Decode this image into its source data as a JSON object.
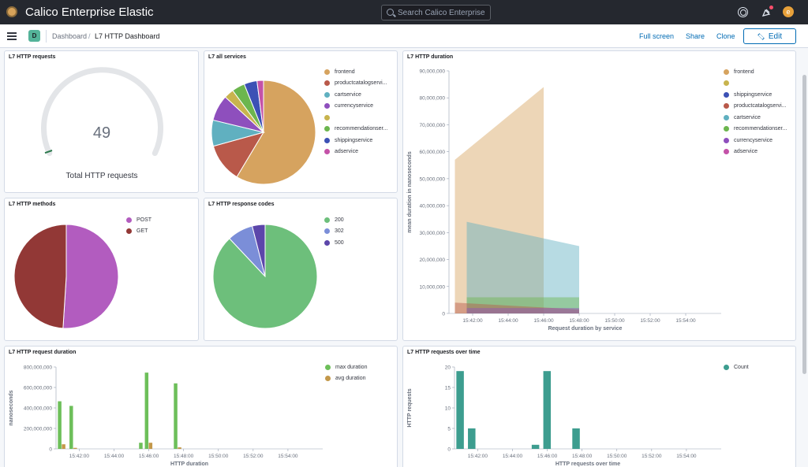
{
  "header": {
    "title": "Calico Enterprise Elastic",
    "search_placeholder": "Search Calico Enterprise",
    "avatar_letter": "e"
  },
  "breadcrumb": {
    "badge": "D",
    "root": "Dashboard",
    "sep": "/",
    "current": "L7 HTTP Dashboard"
  },
  "actions": {
    "fullscreen": "Full screen",
    "share": "Share",
    "clone": "Clone",
    "edit": "Edit"
  },
  "panels": {
    "requests": {
      "title": "L7 HTTP requests",
      "value": "49",
      "label": "Total HTTP requests"
    },
    "services": {
      "title": "L7 all services",
      "legend": [
        {
          "label": "frontend",
          "color": "#d6a35f"
        },
        {
          "label": "productcatalogservi...",
          "color": "#b9594a"
        },
        {
          "label": "cartservice",
          "color": "#60b0c0"
        },
        {
          "label": "currencyservice",
          "color": "#8e4fbd"
        },
        {
          "label": "",
          "color": "#c8b44e"
        },
        {
          "label": "recommendationser...",
          "color": "#6cb64e"
        },
        {
          "label": "shippingservice",
          "color": "#3c51b5"
        },
        {
          "label": "adservice",
          "color": "#c452a8"
        }
      ]
    },
    "duration": {
      "title": "L7 HTTP duration",
      "legend": [
        {
          "label": "frontend",
          "color": "#d6a35f"
        },
        {
          "label": "",
          "color": "#c8b44e"
        },
        {
          "label": "shippingservice",
          "color": "#3c51b5"
        },
        {
          "label": "productcatalogservi...",
          "color": "#b9594a"
        },
        {
          "label": "cartservice",
          "color": "#60b0c0"
        },
        {
          "label": "recommendationser...",
          "color": "#6cb64e"
        },
        {
          "label": "currencyservice",
          "color": "#8e4fbd"
        },
        {
          "label": "adservice",
          "color": "#c452a8"
        }
      ]
    },
    "methods": {
      "title": "L7 HTTP methods",
      "legend": [
        {
          "label": "POST",
          "color": "#b25cbf"
        },
        {
          "label": "GET",
          "color": "#923836"
        }
      ]
    },
    "codes": {
      "title": "L7 HTTP response codes",
      "legend": [
        {
          "label": "200",
          "color": "#6dbf7b"
        },
        {
          "label": "302",
          "color": "#7b8ed8"
        },
        {
          "label": "500",
          "color": "#5c46aa"
        }
      ]
    },
    "req_duration": {
      "title": "L7 HTTP request duration",
      "legend": [
        {
          "label": "max duration",
          "color": "#6dbf5a"
        },
        {
          "label": "avg duration",
          "color": "#c3984a"
        }
      ]
    },
    "over_time": {
      "title": "L7 HTTP requests over time",
      "legend": [
        {
          "label": "Count",
          "color": "#3d9d8f"
        }
      ]
    }
  },
  "chart_data": [
    {
      "type": "pie",
      "title": "L7 all services",
      "categories": [
        "frontend",
        "productcatalogservice",
        "cartservice",
        "currencyservice",
        "",
        "recommendationservice",
        "shippingservice",
        "adservice"
      ],
      "values": [
        58,
        12,
        8,
        8,
        3,
        4,
        4,
        2
      ]
    },
    {
      "type": "pie",
      "title": "L7 HTTP methods",
      "categories": [
        "POST",
        "GET"
      ],
      "values": [
        51,
        49
      ]
    },
    {
      "type": "pie",
      "title": "L7 HTTP response codes",
      "categories": [
        "200",
        "302",
        "500"
      ],
      "values": [
        88,
        8,
        4
      ]
    },
    {
      "type": "area",
      "title": "L7 HTTP duration",
      "xlabel": "Request duration by service",
      "ylabel": "mean duration in nanoseconds",
      "x_ticks": [
        "15:42:00",
        "15:44:00",
        "15:46:00",
        "15:48:00",
        "15:50:00",
        "15:52:00",
        "15:54:00"
      ],
      "y_ticks": [
        "0",
        "10,000,000",
        "20,000,000",
        "30,000,000",
        "40,000,000",
        "50,000,000",
        "60,000,000",
        "70,000,000",
        "80,000,000",
        "90,000,000"
      ],
      "ylim": [
        0,
        90000000
      ],
      "series": [
        {
          "name": "frontend",
          "x": [
            "15:41:00",
            "15:46:00"
          ],
          "values": [
            57000000,
            84000000
          ]
        },
        {
          "name": "cartservice",
          "x": [
            "15:41:40",
            "15:48:00"
          ],
          "values": [
            34000000,
            25000000
          ]
        },
        {
          "name": "recommendationservice",
          "x": [
            "15:41:40",
            "15:48:00"
          ],
          "values": [
            6000000,
            6000000
          ]
        },
        {
          "name": "productcatalogservice",
          "x": [
            "15:41:00",
            "15:48:00"
          ],
          "values": [
            4000000,
            1500000
          ]
        },
        {
          "name": "currencyservice",
          "x": [
            "15:41:40",
            "15:48:00"
          ],
          "values": [
            2000000,
            2000000
          ]
        }
      ]
    },
    {
      "type": "bar",
      "title": "L7 HTTP request duration",
      "xlabel": "HTTP duration",
      "ylabel": "nanoseconds",
      "x_ticks": [
        "15:42:00",
        "15:44:00",
        "15:46:00",
        "15:48:00",
        "15:50:00",
        "15:52:00",
        "15:54:00"
      ],
      "y_ticks": [
        "0",
        "200,000,000",
        "400,000,000",
        "600,000,000",
        "800,000,000"
      ],
      "ylim": [
        0,
        800000000
      ],
      "x": [
        "15:41:00",
        "15:41:40",
        "15:45:40",
        "15:46:00",
        "15:47:40"
      ],
      "series": [
        {
          "name": "max duration",
          "values": [
            465000000,
            420000000,
            60000000,
            745000000,
            640000000
          ]
        },
        {
          "name": "avg duration",
          "values": [
            45000000,
            10000000,
            0,
            60000000,
            15000000
          ]
        }
      ]
    },
    {
      "type": "bar",
      "title": "L7 HTTP requests over time",
      "xlabel": "HTTP requests over time",
      "ylabel": "HTTP requests",
      "x_ticks": [
        "15:42:00",
        "15:44:00",
        "15:46:00",
        "15:48:00",
        "15:50:00",
        "15:52:00",
        "15:54:00"
      ],
      "y_ticks": [
        "0",
        "5",
        "10",
        "15",
        "20"
      ],
      "ylim": [
        0,
        20
      ],
      "x": [
        "15:41:00",
        "15:41:40",
        "15:45:20",
        "15:46:00",
        "15:47:40"
      ],
      "series": [
        {
          "name": "Count",
          "values": [
            19,
            5,
            1,
            19,
            5
          ]
        }
      ]
    }
  ]
}
